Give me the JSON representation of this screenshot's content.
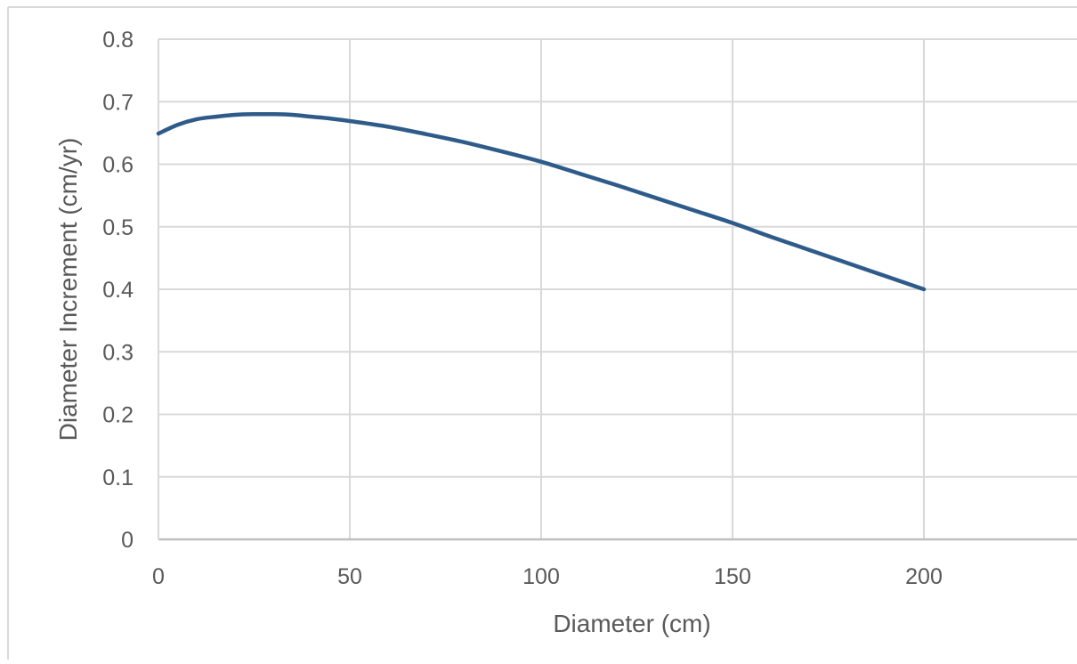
{
  "chart_data": {
    "type": "line",
    "title": "",
    "xlabel": "Diameter (cm)",
    "ylabel": "Diameter Increment (cm/yr)",
    "xlim": [
      0,
      240
    ],
    "ylim": [
      0,
      0.8
    ],
    "x_ticks": [
      "0",
      "50",
      "100",
      "150",
      "200"
    ],
    "y_ticks": [
      "0",
      "0.1",
      "0.2",
      "0.3",
      "0.4",
      "0.5",
      "0.6",
      "0.7",
      "0.8"
    ],
    "grid": true,
    "legend": "none",
    "series": [
      {
        "color": "#2e5b8a",
        "x": [
          0,
          5,
          10,
          15,
          20,
          25,
          30,
          35,
          40,
          45,
          50,
          60,
          70,
          80,
          90,
          100,
          110,
          120,
          130,
          140,
          150,
          160,
          170,
          180,
          190,
          200
        ],
        "y": [
          0.649,
          0.663,
          0.672,
          0.676,
          0.679,
          0.68,
          0.68,
          0.679,
          0.676,
          0.673,
          0.669,
          0.66,
          0.648,
          0.635,
          0.62,
          0.604,
          0.585,
          0.566,
          0.546,
          0.526,
          0.506,
          0.484,
          0.463,
          0.442,
          0.421,
          0.4
        ]
      }
    ]
  },
  "colors": {
    "line": "#2e5b8a",
    "grid": "#d9d9d9",
    "axis": "#bfbfbf",
    "text": "#595959",
    "frame": "#d9d9d9"
  }
}
